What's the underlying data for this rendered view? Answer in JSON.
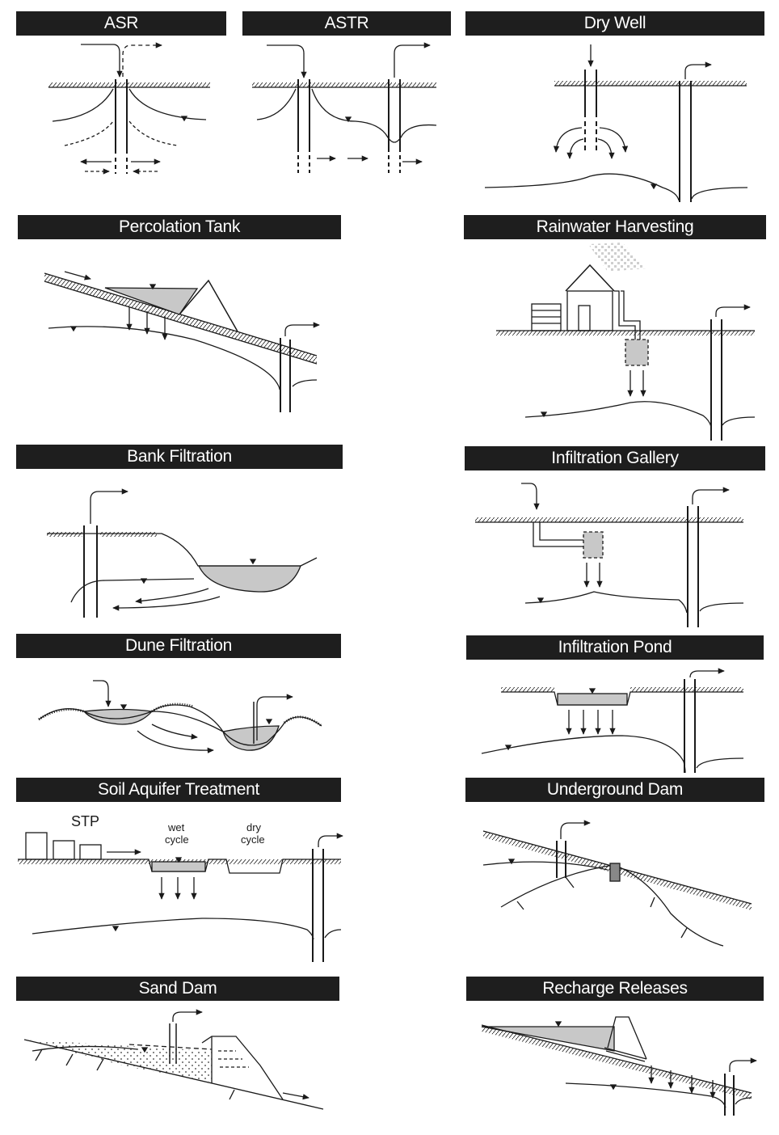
{
  "panels": {
    "asr": "ASR",
    "astr": "ASTR",
    "dry_well": "Dry Well",
    "percolation_tank": "Percolation Tank",
    "rainwater_harvesting": "Rainwater Harvesting",
    "bank_filtration": "Bank Filtration",
    "infiltration_gallery": "Infiltration Gallery",
    "dune_filtration": "Dune Filtration",
    "infiltration_pond": "Infiltration Pond",
    "soil_aquifer_treatment": "Soil Aquifer Treatment",
    "underground_dam": "Underground Dam",
    "sand_dam": "Sand Dam",
    "recharge_releases": "Recharge Releases"
  },
  "labels": {
    "stp": "STP",
    "wet_cycle_1": "wet",
    "wet_cycle_2": "cycle",
    "dry_cycle_1": "dry",
    "dry_cycle_2": "cycle"
  },
  "colors": {
    "title_bar": "#1e1e1e",
    "water_fill": "#c8c8c8",
    "line": "#1a1a1a"
  }
}
